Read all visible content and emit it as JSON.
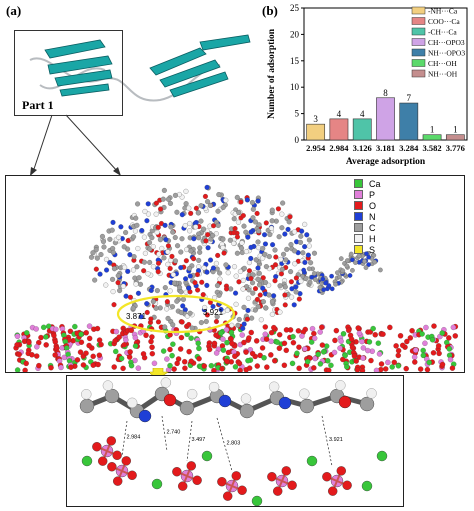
{
  "panel_a_label": "(a)",
  "panel_b_label": "(b)",
  "part1_label": "Part 1",
  "distance_labels": [
    "3.871",
    "3.921"
  ],
  "inset_distance_labels": [
    "2.984",
    "2.740",
    "3.497",
    "2.803",
    "3.921"
  ],
  "atom_legend": [
    {
      "label": "Ca",
      "color": "#38c63a"
    },
    {
      "label": "P",
      "color": "#e07fd9"
    },
    {
      "label": "O",
      "color": "#e31a1c"
    },
    {
      "label": "N",
      "color": "#1f3fd6"
    },
    {
      "label": "C",
      "color": "#9e9e9e"
    },
    {
      "label": "H",
      "color": "#f2f2f2"
    },
    {
      "label": "S",
      "color": "#f3e628"
    }
  ],
  "chart_data": {
    "type": "bar",
    "categories": [
      "2.954",
      "2.984",
      "3.126",
      "3.181",
      "3.284",
      "3.582",
      "3.776"
    ],
    "values": [
      3,
      4,
      4,
      8,
      7,
      1,
      1
    ],
    "xlabel": "Average adsorption",
    "ylabel": "Number of adsorption",
    "ylim": [
      0,
      25
    ],
    "yticks": [
      0,
      5,
      10,
      15,
      20,
      25
    ],
    "legend_position": "top-right",
    "series": [
      {
        "name": "-NH···Ca",
        "color": "#f2cf80"
      },
      {
        "name": "COO···Ca",
        "color": "#e58585"
      },
      {
        "name": "-CH···Ca",
        "color": "#4fc4a8"
      },
      {
        "name": "CH···OPO3",
        "color": "#cfa3e6"
      },
      {
        "name": "NH···OPO3",
        "color": "#3e7fa8"
      },
      {
        "name": "CH···OH",
        "color": "#5bd96b"
      },
      {
        "name": "NH···OH",
        "color": "#c48e8e"
      }
    ]
  }
}
